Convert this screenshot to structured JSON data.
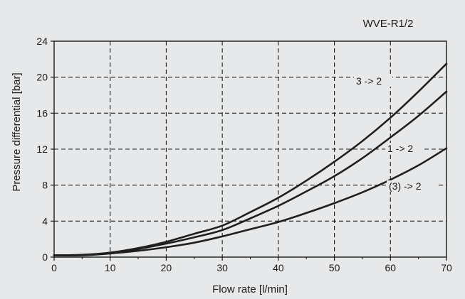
{
  "header": {
    "model_label": "WVE-R1/2"
  },
  "chart_data": {
    "type": "line",
    "title": "",
    "xlabel": "Flow rate [l/min]",
    "ylabel": "Pressure differential [bar]",
    "xlim": [
      0,
      70
    ],
    "ylim": [
      0,
      24
    ],
    "xticks": [
      0,
      10,
      20,
      30,
      40,
      50,
      60,
      70
    ],
    "yticks": [
      0,
      4,
      8,
      12,
      16,
      20,
      24
    ],
    "grid": true,
    "legend": "none",
    "series": [
      {
        "name": "3 -> 2",
        "x": [
          0,
          5,
          10,
          15,
          20,
          25,
          30,
          35,
          40,
          45,
          50,
          55,
          60,
          65,
          70
        ],
        "y": [
          0.2,
          0.25,
          0.5,
          1.0,
          1.7,
          2.6,
          3.5,
          5.0,
          6.6,
          8.5,
          10.6,
          12.9,
          15.5,
          18.4,
          21.5
        ]
      },
      {
        "name": "1 -> 2",
        "x": [
          0,
          5,
          10,
          15,
          20,
          25,
          30,
          35,
          40,
          45,
          50,
          55,
          60,
          65,
          70
        ],
        "y": [
          0.2,
          0.25,
          0.45,
          0.9,
          1.5,
          2.2,
          3.0,
          4.3,
          5.7,
          7.3,
          9.0,
          11.0,
          13.3,
          15.7,
          18.4
        ]
      },
      {
        "name": "(3) -> 2",
        "x": [
          0,
          5,
          10,
          15,
          20,
          25,
          30,
          35,
          40,
          45,
          50,
          55,
          60,
          65,
          70
        ],
        "y": [
          0.2,
          0.2,
          0.4,
          0.7,
          1.1,
          1.6,
          2.3,
          3.1,
          3.9,
          4.9,
          6.0,
          7.2,
          8.6,
          10.2,
          12.1
        ]
      }
    ]
  }
}
